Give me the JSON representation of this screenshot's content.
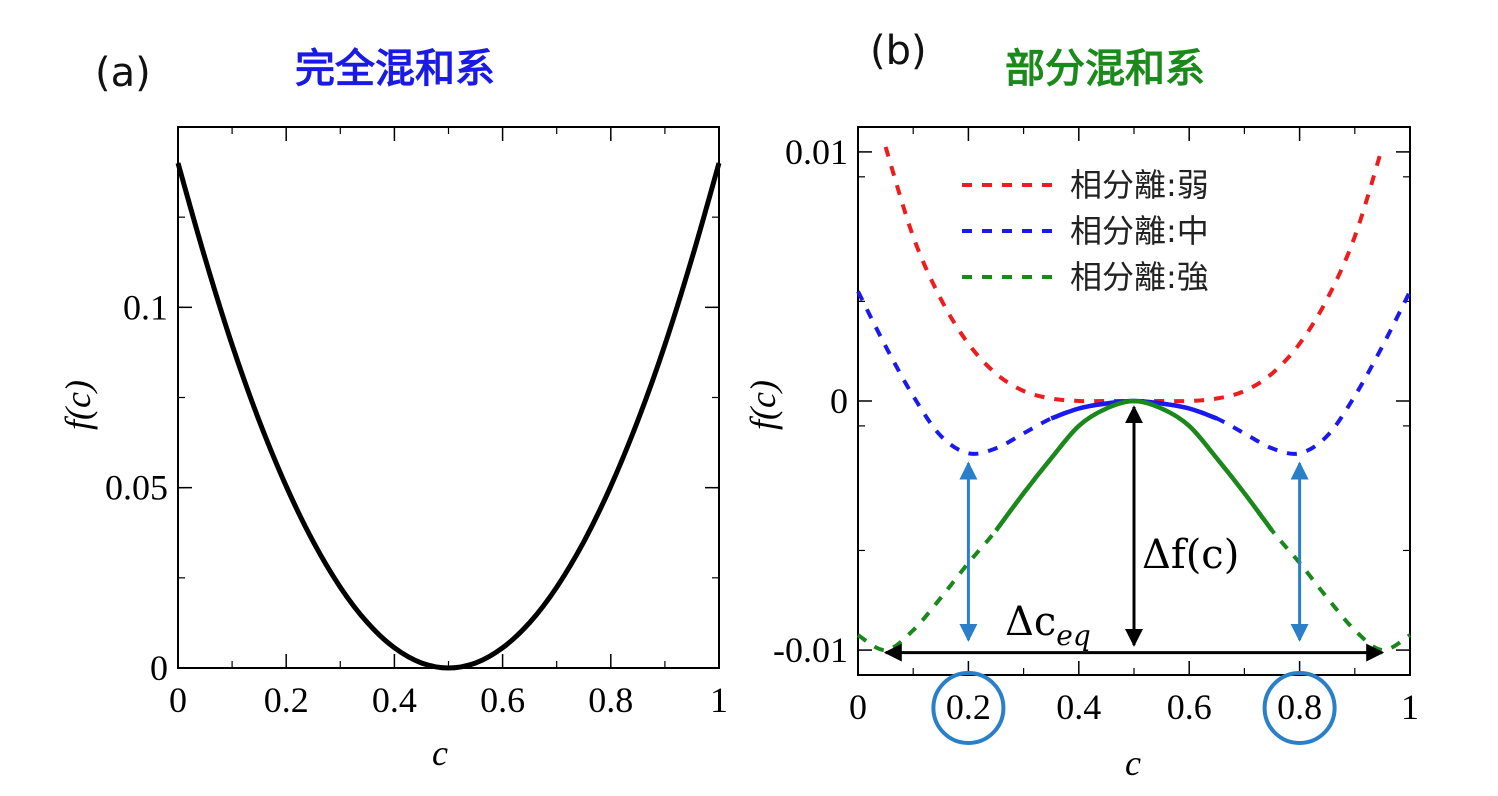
{
  "chart_data": [
    {
      "panel_label": "(a)",
      "title": "完全混和系",
      "title_color": "#1a1ae6",
      "type": "line",
      "xlabel": "c",
      "ylabel": "f(c)",
      "xlim": [
        0,
        1
      ],
      "ylim": [
        0,
        0.15
      ],
      "xticks": [
        "0",
        "0.2",
        "0.4",
        "0.6",
        "0.8",
        "1"
      ],
      "yticks": [
        "0",
        "0.05",
        "0.1"
      ],
      "grid": false,
      "series": [
        {
          "color": "#000000",
          "style": "solid",
          "x": [
            0,
            0.05,
            0.1,
            0.15,
            0.2,
            0.25,
            0.3,
            0.35,
            0.4,
            0.45,
            0.5,
            0.55,
            0.6,
            0.65,
            0.7,
            0.75,
            0.8,
            0.85,
            0.9,
            0.95,
            1
          ],
          "y": [
            0.14,
            0.1136,
            0.0896,
            0.0686,
            0.0504,
            0.035,
            0.0224,
            0.0126,
            0.0056,
            0.0014,
            0,
            0.0014,
            0.0056,
            0.0126,
            0.0224,
            0.035,
            0.0504,
            0.0686,
            0.0896,
            0.1136,
            0.14
          ]
        }
      ]
    },
    {
      "panel_label": "(b)",
      "title": "部分混和系",
      "title_color": "#1a8a1a",
      "type": "line",
      "xlabel": "c",
      "ylabel": "f(c)",
      "xlim": [
        0,
        1
      ],
      "ylim": [
        -0.011,
        0.011
      ],
      "xticks": [
        "0",
        "0.2",
        "0.4",
        "0.6",
        "0.8",
        "1"
      ],
      "yticks": [
        "-0.01",
        "0",
        "0.01"
      ],
      "grid": false,
      "legend_position": "top-center",
      "series": [
        {
          "name": "相分離:弱",
          "color": "#ee1c1c",
          "style": "dashed",
          "x": [
            0.05,
            0.1,
            0.15,
            0.2,
            0.25,
            0.3,
            0.35,
            0.4,
            0.45,
            0.5,
            0.55,
            0.6,
            0.65,
            0.7,
            0.75,
            0.8,
            0.85,
            0.9,
            0.95
          ],
          "y": [
            0.0102,
            0.0066,
            0.0041,
            0.0023,
            0.0011,
            0.0004,
            0.0001,
            0.0,
            0.0,
            0,
            0.0,
            0.0,
            0.0001,
            0.0004,
            0.0011,
            0.0023,
            0.0041,
            0.0066,
            0.0102
          ]
        },
        {
          "name": "相分離:中",
          "color": "#1a1aee",
          "style": "dashed",
          "solid_range": [
            0.32,
            0.68
          ],
          "x": [
            0,
            0.05,
            0.1,
            0.15,
            0.2,
            0.25,
            0.3,
            0.35,
            0.4,
            0.45,
            0.5,
            0.55,
            0.6,
            0.65,
            0.7,
            0.75,
            0.8,
            0.85,
            0.9,
            0.95,
            1
          ],
          "y": [
            0.0044,
            0.0022,
            0.0002,
            -0.0014,
            -0.0021,
            -0.0019,
            -0.0013,
            -0.0007,
            -0.0003,
            -0.0001,
            0,
            -0.0001,
            -0.0003,
            -0.0007,
            -0.0013,
            -0.0019,
            -0.0021,
            -0.0014,
            0.0002,
            0.0022,
            0.0044
          ]
        },
        {
          "name": "相分離:強",
          "color": "#1a881a",
          "style": "dashed",
          "solid_range": [
            0.25,
            0.75
          ],
          "x": [
            0,
            0.05,
            0.1,
            0.15,
            0.2,
            0.25,
            0.3,
            0.35,
            0.4,
            0.45,
            0.5,
            0.55,
            0.6,
            0.65,
            0.7,
            0.75,
            0.8,
            0.85,
            0.9,
            0.95,
            1
          ],
          "y": [
            -0.0094,
            -0.01,
            -0.0092,
            -0.0079,
            -0.0065,
            -0.0052,
            -0.0037,
            -0.0023,
            -0.001,
            -0.0003,
            0,
            -0.0003,
            -0.001,
            -0.0023,
            -0.0037,
            -0.0052,
            -0.0065,
            -0.0079,
            -0.0092,
            -0.01,
            -0.0094
          ]
        }
      ],
      "annotations": {
        "delta_f_label": "Δf(c)",
        "delta_c_label": "Δc",
        "delta_c_subscript": "eq",
        "delta_f_x": 0.5,
        "delta_f_y": [
          0,
          -0.0098
        ],
        "delta_c_x": [
          0.05,
          0.95
        ],
        "delta_c_y": -0.0101,
        "blue_arrows": [
          {
            "x": 0.2,
            "y": [
              -0.0025,
              -0.0096
            ]
          },
          {
            "x": 0.8,
            "y": [
              -0.0025,
              -0.0096
            ]
          }
        ],
        "circled_ticks": [
          "0.2",
          "0.8"
        ],
        "arrow_color_blue": "#2a7fc9",
        "arrow_color_black": "#000000"
      }
    }
  ]
}
